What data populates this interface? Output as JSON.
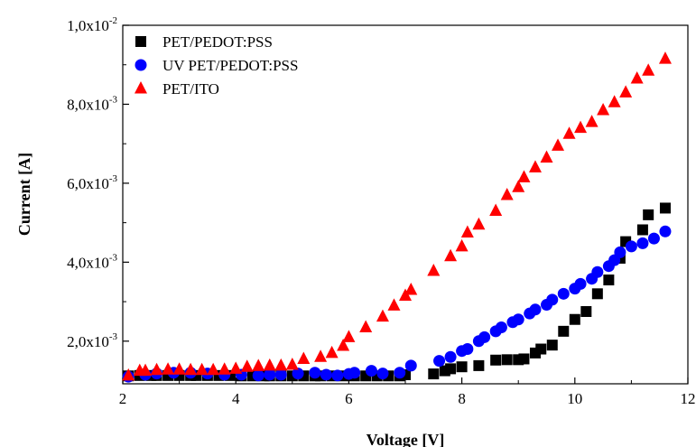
{
  "chart_data": {
    "type": "scatter",
    "xlabel": "Voltage [V]",
    "ylabel": "Current [A]",
    "xlim": [
      2,
      12
    ],
    "ylim": [
      0.00092,
      0.01
    ],
    "x_ticks": [
      2,
      4,
      6,
      8,
      10,
      12
    ],
    "x_tick_labels": [
      "2",
      "4",
      "6",
      "8",
      "10",
      "12"
    ],
    "y_ticks": [
      0.002,
      0.004,
      0.006,
      0.008,
      0.01
    ],
    "y_tick_labels": [
      {
        "mantissa": "2,0x10",
        "exponent": "-3"
      },
      {
        "mantissa": "4,0x10",
        "exponent": "-3"
      },
      {
        "mantissa": "6,0x10",
        "exponent": "-3"
      },
      {
        "mantissa": "8,0x10",
        "exponent": "-3"
      },
      {
        "mantissa": "1,0x10",
        "exponent": "-2"
      }
    ],
    "grid": false,
    "legend_position": "top-left",
    "series": [
      {
        "name": "PET/PEDOT:PSS",
        "marker": "square",
        "color": "#000000",
        "points": [
          [
            2.1,
            0.00112
          ],
          [
            2.3,
            0.00113
          ],
          [
            2.5,
            0.00113
          ],
          [
            2.6,
            0.00113
          ],
          [
            2.8,
            0.00113
          ],
          [
            3.0,
            0.00113
          ],
          [
            3.2,
            0.00113
          ],
          [
            3.3,
            0.00113
          ],
          [
            3.5,
            0.00113
          ],
          [
            3.7,
            0.00113
          ],
          [
            3.9,
            0.00113
          ],
          [
            4.1,
            0.00112
          ],
          [
            4.3,
            0.00112
          ],
          [
            4.5,
            0.00112
          ],
          [
            4.6,
            0.00112
          ],
          [
            4.8,
            0.00112
          ],
          [
            5.0,
            0.00112
          ],
          [
            5.2,
            0.00112
          ],
          [
            5.4,
            0.00112
          ],
          [
            5.5,
            0.00112
          ],
          [
            5.7,
            0.00112
          ],
          [
            5.9,
            0.00112
          ],
          [
            6.1,
            0.00112
          ],
          [
            6.3,
            0.00112
          ],
          [
            6.5,
            0.00112
          ],
          [
            6.7,
            0.00112
          ],
          [
            6.9,
            0.00112
          ],
          [
            7.0,
            0.00115
          ],
          [
            7.5,
            0.00117
          ],
          [
            7.7,
            0.00125
          ],
          [
            7.8,
            0.0013
          ],
          [
            8.0,
            0.00135
          ],
          [
            8.3,
            0.00138
          ],
          [
            8.6,
            0.00152
          ],
          [
            8.8,
            0.00153
          ],
          [
            9.0,
            0.00153
          ],
          [
            9.1,
            0.00155
          ],
          [
            9.3,
            0.0017
          ],
          [
            9.4,
            0.0018
          ],
          [
            9.6,
            0.0019
          ],
          [
            9.8,
            0.00225
          ],
          [
            10.0,
            0.00255
          ],
          [
            10.2,
            0.00275
          ],
          [
            10.4,
            0.0032
          ],
          [
            10.6,
            0.00355
          ],
          [
            10.8,
            0.0041
          ],
          [
            10.9,
            0.00452
          ],
          [
            11.2,
            0.00482
          ],
          [
            11.3,
            0.0052
          ],
          [
            11.6,
            0.00537
          ]
        ]
      },
      {
        "name": "UV PET/PEDOT:PSS",
        "marker": "circle",
        "color": "#0000ff",
        "points": [
          [
            2.1,
            0.0011
          ],
          [
            2.4,
            0.00115
          ],
          [
            2.6,
            0.00118
          ],
          [
            2.9,
            0.0012
          ],
          [
            3.2,
            0.0012
          ],
          [
            3.5,
            0.00118
          ],
          [
            3.8,
            0.00115
          ],
          [
            4.1,
            0.00115
          ],
          [
            4.4,
            0.00113
          ],
          [
            4.6,
            0.00115
          ],
          [
            4.8,
            0.00115
          ],
          [
            5.1,
            0.00118
          ],
          [
            5.4,
            0.0012
          ],
          [
            5.6,
            0.00115
          ],
          [
            5.8,
            0.00113
          ],
          [
            6.0,
            0.00117
          ],
          [
            6.1,
            0.0012
          ],
          [
            6.4,
            0.00125
          ],
          [
            6.6,
            0.00118
          ],
          [
            6.9,
            0.0012
          ],
          [
            7.1,
            0.00138
          ],
          [
            7.6,
            0.0015
          ],
          [
            7.8,
            0.0016
          ],
          [
            8.0,
            0.00175
          ],
          [
            8.1,
            0.0018
          ],
          [
            8.3,
            0.002
          ],
          [
            8.4,
            0.0021
          ],
          [
            8.6,
            0.00225
          ],
          [
            8.7,
            0.00235
          ],
          [
            8.9,
            0.00248
          ],
          [
            9.0,
            0.00255
          ],
          [
            9.2,
            0.0027
          ],
          [
            9.3,
            0.0028
          ],
          [
            9.5,
            0.00292
          ],
          [
            9.6,
            0.00305
          ],
          [
            9.8,
            0.0032
          ],
          [
            10.0,
            0.00333
          ],
          [
            10.1,
            0.00345
          ],
          [
            10.3,
            0.00358
          ],
          [
            10.4,
            0.00375
          ],
          [
            10.6,
            0.0039
          ],
          [
            10.7,
            0.00405
          ],
          [
            10.8,
            0.00425
          ],
          [
            11.0,
            0.0044
          ],
          [
            11.2,
            0.00448
          ],
          [
            11.4,
            0.0046
          ],
          [
            11.6,
            0.00478
          ]
        ]
      },
      {
        "name": "PET/ITO",
        "marker": "triangle",
        "color": "#ff0000",
        "points": [
          [
            2.1,
            0.00113
          ],
          [
            2.3,
            0.00125
          ],
          [
            2.4,
            0.00125
          ],
          [
            2.6,
            0.00127
          ],
          [
            2.8,
            0.00128
          ],
          [
            3.0,
            0.00128
          ],
          [
            3.2,
            0.00127
          ],
          [
            3.4,
            0.00127
          ],
          [
            3.6,
            0.00127
          ],
          [
            3.8,
            0.00128
          ],
          [
            4.0,
            0.0013
          ],
          [
            4.2,
            0.00135
          ],
          [
            4.4,
            0.00137
          ],
          [
            4.6,
            0.00138
          ],
          [
            4.8,
            0.00138
          ],
          [
            5.0,
            0.0014
          ],
          [
            5.2,
            0.00155
          ],
          [
            5.5,
            0.0016
          ],
          [
            5.7,
            0.0017
          ],
          [
            5.9,
            0.00188
          ],
          [
            6.0,
            0.0021
          ],
          [
            6.3,
            0.00235
          ],
          [
            6.6,
            0.00262
          ],
          [
            6.8,
            0.0029
          ],
          [
            7.0,
            0.00315
          ],
          [
            7.1,
            0.0033
          ],
          [
            7.5,
            0.00378
          ],
          [
            7.8,
            0.00415
          ],
          [
            8.0,
            0.0044
          ],
          [
            8.1,
            0.00475
          ],
          [
            8.3,
            0.00495
          ],
          [
            8.6,
            0.0053
          ],
          [
            8.8,
            0.0057
          ],
          [
            9.0,
            0.0059
          ],
          [
            9.1,
            0.00615
          ],
          [
            9.3,
            0.0064
          ],
          [
            9.5,
            0.00665
          ],
          [
            9.7,
            0.00695
          ],
          [
            9.9,
            0.00725
          ],
          [
            10.1,
            0.0074
          ],
          [
            10.3,
            0.00755
          ],
          [
            10.5,
            0.00785
          ],
          [
            10.7,
            0.00805
          ],
          [
            10.9,
            0.0083
          ],
          [
            11.1,
            0.00865
          ],
          [
            11.3,
            0.00885
          ],
          [
            11.6,
            0.00915
          ]
        ]
      }
    ]
  }
}
